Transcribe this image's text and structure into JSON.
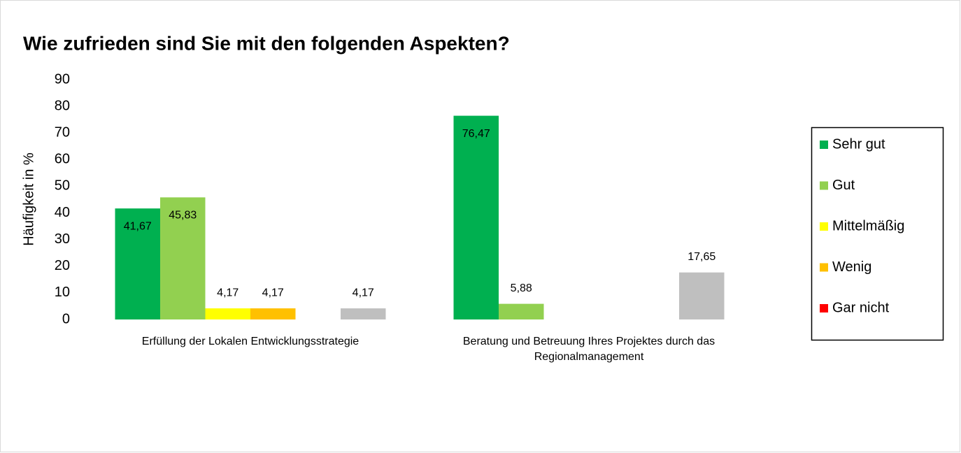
{
  "chart_data": {
    "type": "bar",
    "title": "Wie zufrieden sind Sie mit den folgenden Aspekten?",
    "y_label": "Häufigkeit in %",
    "categories": [
      "Erfüllung der Lokalen Entwicklungsstrategie",
      "Beratung und Betreuung Ihres Projektes durch das Regionalmanagement"
    ],
    "series": [
      {
        "name": "Sehr gut",
        "color": "#00b050",
        "values": [
          41.67,
          76.47
        ],
        "value_labels": [
          "41,67",
          "76,47"
        ]
      },
      {
        "name": "Gut",
        "color": "#92d050",
        "values": [
          45.83,
          5.88
        ],
        "value_labels": [
          "45,83",
          "5,88"
        ]
      },
      {
        "name": "Mittelmäßig",
        "color": "#ffff00",
        "values": [
          4.17,
          null
        ],
        "value_labels": [
          "4,17",
          null
        ]
      },
      {
        "name": "Wenig",
        "color": "#ffc000",
        "values": [
          4.17,
          null
        ],
        "value_labels": [
          "4,17",
          null
        ]
      },
      {
        "name": "Gar nicht",
        "color": "#ff0000",
        "values": [
          null,
          null
        ],
        "value_labels": [
          null,
          null
        ]
      },
      {
        "color": "#bfbfbf",
        "values": [
          4.17,
          17.65
        ],
        "value_labels": [
          "4,17",
          "17,65"
        ]
      }
    ],
    "ylim": [
      0,
      90
    ],
    "yticks": [
      0,
      10,
      20,
      30,
      40,
      50,
      60,
      70,
      80,
      90
    ],
    "grid": false,
    "legend": "right"
  }
}
